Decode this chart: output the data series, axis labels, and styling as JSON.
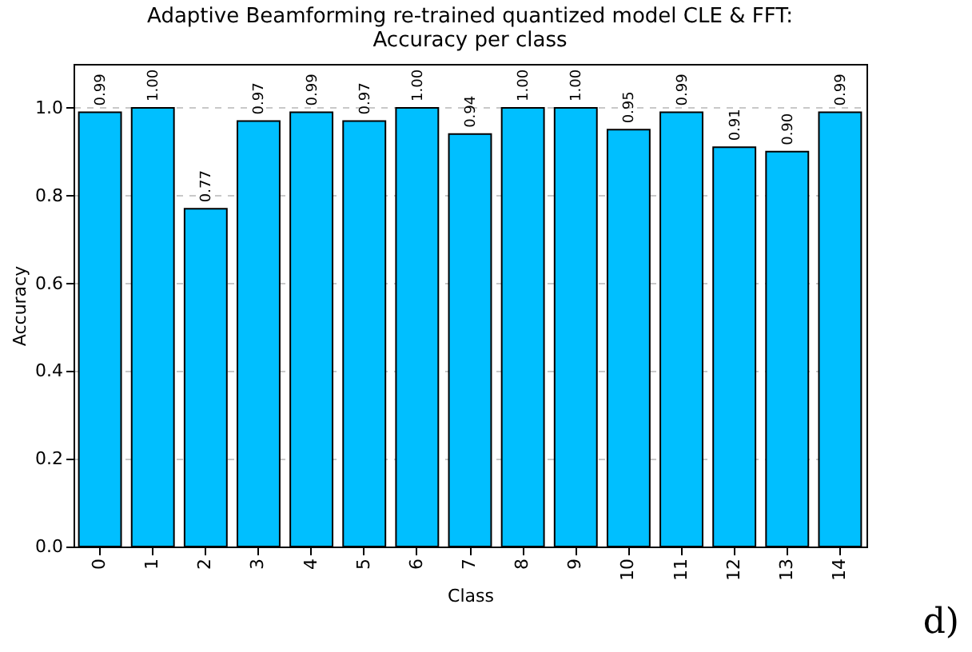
{
  "chart_data": {
    "type": "bar",
    "title": "Adaptive Beamforming re-trained quantized model CLE & FFT:\nAccuracy per class",
    "xlabel": "Class",
    "ylabel": "Accuracy",
    "categories": [
      "0",
      "1",
      "2",
      "3",
      "4",
      "5",
      "6",
      "7",
      "8",
      "9",
      "10",
      "11",
      "12",
      "13",
      "14"
    ],
    "values": [
      0.99,
      1.0,
      0.77,
      0.97,
      0.99,
      0.97,
      1.0,
      0.94,
      1.0,
      1.0,
      0.95,
      0.99,
      0.91,
      0.9,
      0.99
    ],
    "value_labels": [
      "0.99",
      "1.00",
      "0.77",
      "0.97",
      "0.99",
      "0.97",
      "1.00",
      "0.94",
      "1.00",
      "1.00",
      "0.95",
      "0.99",
      "0.91",
      "0.90",
      "0.99"
    ],
    "color": "#00bfff",
    "ylim": [
      0,
      1.1
    ],
    "yticks": [
      {
        "value": 0,
        "label": "0.0"
      },
      {
        "value": 0.2,
        "label": "0.2"
      },
      {
        "value": 0.4,
        "label": "0.4"
      },
      {
        "value": 0.6,
        "label": "0.6"
      },
      {
        "value": 0.8,
        "label": "0.8"
      },
      {
        "value": 1,
        "label": "1.0"
      }
    ],
    "grid": "y",
    "annotations": [
      "d)"
    ]
  }
}
